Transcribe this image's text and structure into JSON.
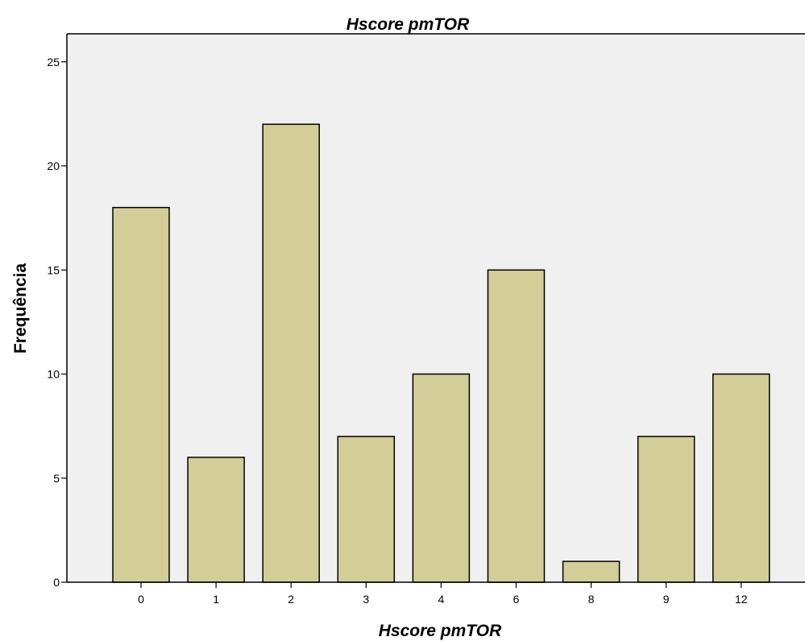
{
  "chart_data": {
    "type": "bar",
    "title": "Hscore pmTOR",
    "xlabel": "Hscore pmTOR",
    "ylabel": "Frequência",
    "categories": [
      "0",
      "1",
      "2",
      "3",
      "4",
      "6",
      "8",
      "9",
      "12"
    ],
    "values": [
      18,
      6,
      22,
      7,
      10,
      15,
      1,
      7,
      10
    ],
    "ylim": [
      0,
      26
    ],
    "yticks": [
      "0",
      "5",
      "10",
      "15",
      "20",
      "25"
    ],
    "grid": false,
    "legend": "none",
    "colors": {
      "bar_fill": "#d3cd98",
      "bar_stroke": "#000000",
      "plot_background": "#f0f0f0"
    }
  }
}
